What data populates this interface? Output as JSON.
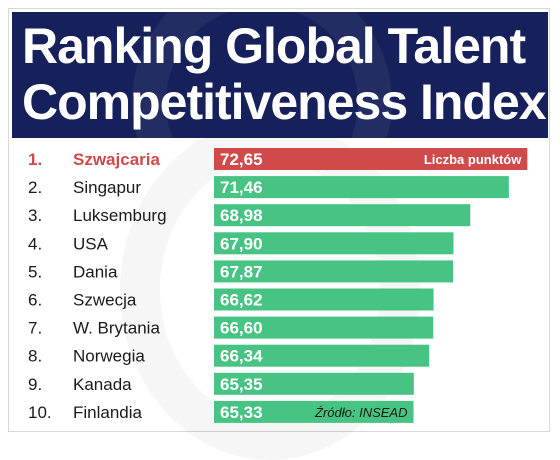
{
  "title_line1": "Ranking Global Talent",
  "title_line2": "Competitiveness Index",
  "legend_label": "Liczba punktów",
  "source": "Źródło:  INSEAD",
  "colors": {
    "header": "#16205a",
    "top_bar": "#d04a4a",
    "bar": "#47c383",
    "highlight_text": "#d04a4a"
  },
  "chart_data": {
    "type": "bar",
    "orientation": "horizontal",
    "title": "Ranking Global Talent Competitiveness Index",
    "ranks": [
      "1.",
      "2.",
      "3.",
      "4.",
      "5.",
      "6.",
      "7.",
      "8.",
      "9.",
      "10."
    ],
    "categories": [
      "Szwajcaria",
      "Singapur",
      "Luksemburg",
      "USA",
      "Dania",
      "Szwecja",
      "W. Brytania",
      "Norwegia",
      "Kanada",
      "Finlandia"
    ],
    "values": [
      72.65,
      71.46,
      68.98,
      67.9,
      67.87,
      66.62,
      66.6,
      66.34,
      65.35,
      65.33
    ],
    "value_labels": [
      "72,65",
      "71,46",
      "68,98",
      "67,90",
      "67,87",
      "66,62",
      "66,60",
      "66,34",
      "65,35",
      "65,33"
    ],
    "series": [
      {
        "name": "Liczba punktów",
        "values": [
          72.65,
          71.46,
          68.98,
          67.9,
          67.87,
          66.62,
          66.6,
          66.34,
          65.35,
          65.33
        ]
      }
    ],
    "legend": "inside-top-bar-right",
    "highlight_index": 0,
    "grid": false
  }
}
